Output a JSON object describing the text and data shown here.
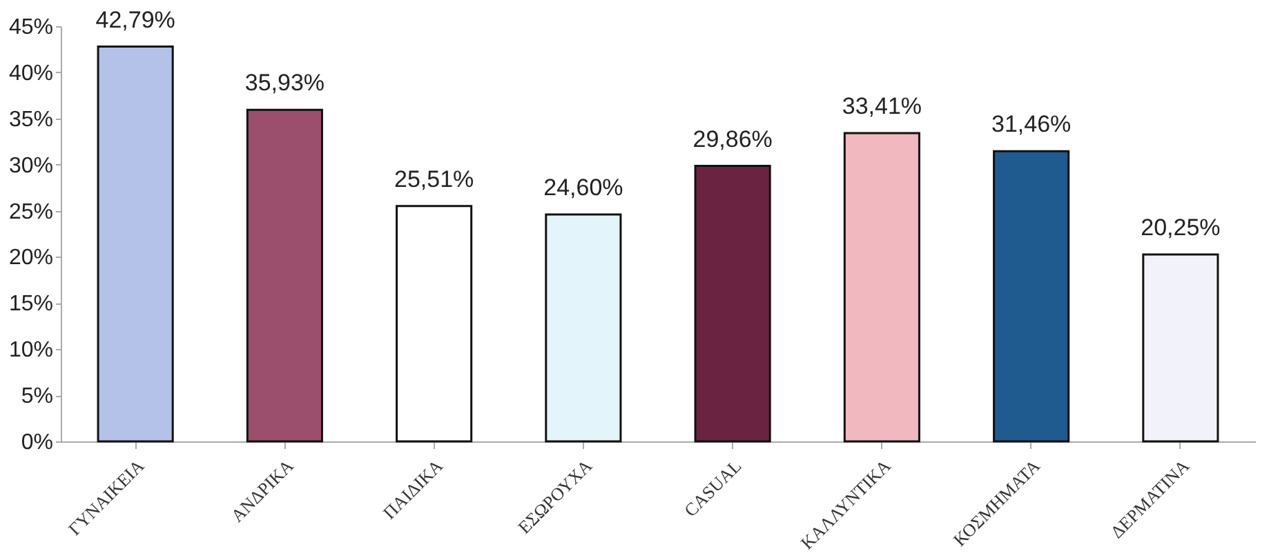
{
  "chart_data": {
    "type": "bar",
    "categories": [
      "ΓΥΝΑΙΚΕΙΑ",
      "ΑΝΔΡΙΚΑ",
      "ΠΑΙΔΙΚΑ",
      "ΕΣΩΡΟΥΧΑ",
      "CASUAL",
      "ΚΑΛΛΥΝΤΙΚΑ",
      "ΚΟΣΜΗΜΑΤΑ",
      "ΔΕΡΜΑΤΙΝΑ"
    ],
    "values": [
      42.79,
      35.93,
      25.51,
      24.6,
      29.86,
      33.41,
      31.46,
      20.25
    ],
    "value_labels": [
      "42,79%",
      "35,93%",
      "25,51%",
      "24,60%",
      "29,86%",
      "33,41%",
      "31,46%",
      "20,25%"
    ],
    "colors": [
      "#b4c2ea",
      "#9b4f6c",
      "#ffffff",
      "#e4f4fb",
      "#6b2342",
      "#f2b8c0",
      "#1f5b8e",
      "#f2f2fa"
    ],
    "ylim": [
      0,
      45
    ],
    "yticks": [
      {
        "value": 0,
        "label": "0%"
      },
      {
        "value": 5,
        "label": "5%"
      },
      {
        "value": 10,
        "label": "10%"
      },
      {
        "value": 15,
        "label": "15%"
      },
      {
        "value": 20,
        "label": "20%"
      },
      {
        "value": 25,
        "label": "25%"
      },
      {
        "value": 30,
        "label": "30%"
      },
      {
        "value": 35,
        "label": "35%"
      },
      {
        "value": 40,
        "label": "40%"
      },
      {
        "value": 45,
        "label": "45%"
      }
    ],
    "grid": false,
    "legend": false
  }
}
